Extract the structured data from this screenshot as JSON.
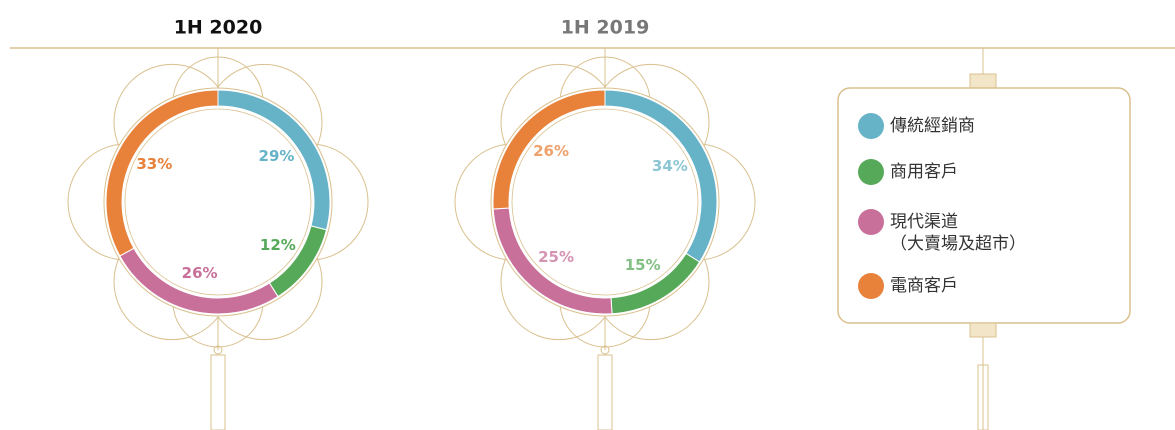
{
  "chart_data": [
    {
      "type": "donut",
      "title": "1H 2020",
      "categories": [
        "傳統經銷商",
        "商用客戶",
        "現代渠道\n（大賣場及超市）",
        "電商客戶"
      ],
      "values": [
        29,
        12,
        26,
        33
      ],
      "value_labels": [
        "29%",
        "12%",
        "26%",
        "33%"
      ],
      "colors": [
        "#66b3c7",
        "#57a95a",
        "#c8709a",
        "#e8813a"
      ]
    },
    {
      "type": "donut",
      "title": "1H 2019",
      "categories": [
        "傳統經銷商",
        "商用客戶",
        "現代渠道\n（大賣場及超市）",
        "電商客戶"
      ],
      "values": [
        34,
        15,
        25,
        26
      ],
      "value_labels": [
        "34%",
        "15%",
        "25%",
        "26%"
      ],
      "colors": [
        "#66b3c7",
        "#57a95a",
        "#c8709a",
        "#e8813a"
      ]
    }
  ]
}
